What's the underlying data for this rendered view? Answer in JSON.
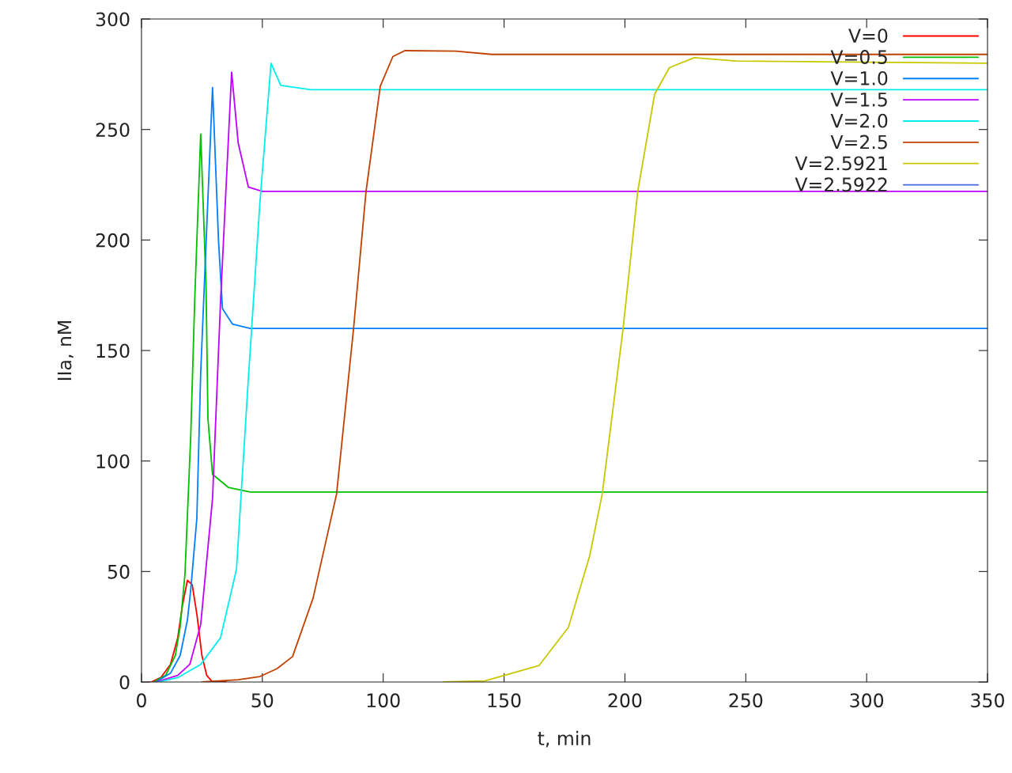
{
  "chart_data": {
    "type": "line",
    "xlabel": "t, min",
    "ylabel": "IIa, nM",
    "xlim": [
      0,
      350
    ],
    "ylim": [
      0,
      300
    ],
    "xticks": [
      0,
      50,
      100,
      150,
      200,
      250,
      300,
      350
    ],
    "yticks": [
      0,
      50,
      100,
      150,
      200,
      250,
      300
    ],
    "grid": false,
    "legend": "top right",
    "marker": "none",
    "line_style": "solid",
    "series": [
      {
        "name": "V=0",
        "color": "#ff0000",
        "x": [
          4,
          8,
          12,
          15,
          17,
          19,
          21,
          23,
          25,
          27,
          29,
          31,
          35
        ],
        "values": [
          0,
          2,
          8,
          20,
          35,
          46,
          44,
          30,
          12,
          3,
          0.5,
          0,
          0
        ]
      },
      {
        "name": "V=0.5",
        "color": "#00c000",
        "x": [
          5,
          10,
          14,
          16,
          18,
          20.4,
          22,
          24.5,
          26.7,
          27.5,
          29.4,
          36,
          45,
          350
        ],
        "values": [
          0,
          3,
          12,
          25,
          49,
          112,
          172,
          248,
          180,
          119,
          94,
          88,
          86,
          86
        ]
      },
      {
        "name": "V=1.0",
        "color": "#0080ff",
        "x": [
          6,
          12,
          16,
          19,
          20.4,
          22.9,
          24.5,
          29.4,
          31.9,
          33.5,
          37.6,
          45,
          350
        ],
        "values": [
          0,
          4,
          12,
          28,
          42,
          74,
          140,
          269,
          199,
          169,
          162,
          160,
          160
        ]
      },
      {
        "name": "V=1.5",
        "color": "#c000ff",
        "x": [
          6,
          15,
          20,
          24.5,
          29.4,
          32.7,
          37.3,
          40,
          44.2,
          50,
          350
        ],
        "values": [
          0,
          3,
          8,
          26,
          83,
          172,
          276,
          244,
          224,
          222,
          222
        ]
      },
      {
        "name": "V=2.0",
        "color": "#00eeee",
        "x": [
          7,
          15,
          24.5,
          32.7,
          39.3,
          44.2,
          49,
          53.6,
          57.6,
          70,
          350
        ],
        "values": [
          0,
          2,
          8,
          20,
          51,
          137,
          217,
          280,
          270,
          268,
          268
        ]
      },
      {
        "name": "V=2.5",
        "color": "#c04000",
        "x": [
          25,
          40,
          49,
          56,
          62.5,
          71,
          80.7,
          87.7,
          92.9,
          98.8,
          104,
          109,
          130,
          145,
          350
        ],
        "values": [
          0,
          1,
          2.5,
          6,
          11.5,
          38,
          85,
          159.5,
          222,
          269.6,
          283,
          285.7,
          285.5,
          284,
          284
        ]
      },
      {
        "name": "V=2.5921",
        "color": "#c8c800",
        "x": [
          125,
          142,
          164.5,
          176.6,
          185.4,
          190.6,
          199.2,
          205.3,
          212.3,
          218.4,
          228.7,
          246,
          350
        ],
        "values": [
          0,
          0.5,
          7.5,
          24.7,
          57,
          85,
          159.5,
          222,
          266,
          278,
          282.5,
          281,
          280
        ]
      },
      {
        "name": "V=2.5922",
        "color": "#4169e1"
      }
    ]
  }
}
